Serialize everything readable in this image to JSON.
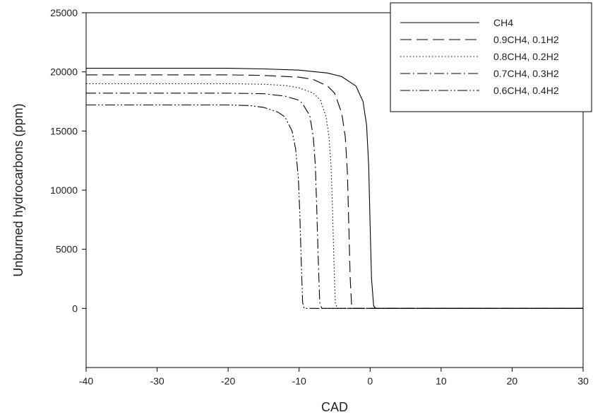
{
  "chart_data": {
    "type": "line",
    "title": "",
    "xlabel": "CAD",
    "ylabel": "Unburned hydrocarbons (ppm)",
    "xlim": [
      -40,
      30
    ],
    "ylim": [
      -5000,
      25000
    ],
    "xticks": [
      -40,
      -30,
      -20,
      -10,
      0,
      10,
      20,
      30
    ],
    "yticks": [
      0,
      5000,
      10000,
      15000,
      20000,
      25000
    ],
    "xtick_labels": [
      "-40",
      "-30",
      "-20",
      "-10",
      "0",
      "10",
      "20",
      "30"
    ],
    "ytick_labels": [
      "0",
      "5000",
      "10000",
      "15000",
      "20000",
      "25000"
    ],
    "grid": false,
    "legend_position": "top-right",
    "series": [
      {
        "name": "CH4",
        "dash": "solid",
        "x": [
          -40,
          -30,
          -20,
          -15,
          -10,
          -6,
          -4,
          -2,
          -1,
          -0.5,
          -0.2,
          0,
          0.2,
          0.5,
          0.8,
          1,
          10,
          20,
          30
        ],
        "y": [
          20300,
          20300,
          20300,
          20250,
          20150,
          19900,
          19600,
          18800,
          17500,
          15500,
          12000,
          7000,
          2500,
          200,
          0,
          0,
          0,
          0,
          0
        ]
      },
      {
        "name": "0.9CH4, 0.1H2",
        "dash": "long-dash",
        "x": [
          -40,
          -30,
          -20,
          -15,
          -10,
          -8,
          -6,
          -5,
          -4,
          -3.5,
          -3.2,
          -3,
          -2.8,
          -2.6,
          -2.4,
          0,
          10,
          20,
          30
        ],
        "y": [
          19750,
          19750,
          19750,
          19700,
          19550,
          19350,
          18800,
          18200,
          16500,
          14500,
          11500,
          7000,
          2500,
          200,
          0,
          0,
          0,
          0,
          0
        ]
      },
      {
        "name": "0.8CH4, 0.2H2",
        "dash": "dotted",
        "x": [
          -40,
          -30,
          -20,
          -15,
          -12,
          -10,
          -8,
          -7,
          -6.2,
          -5.8,
          -5.5,
          -5.3,
          -5.1,
          -4.9,
          -4.6,
          0,
          10,
          20,
          30
        ],
        "y": [
          19000,
          19000,
          19000,
          18950,
          18850,
          18650,
          18200,
          17600,
          16200,
          14500,
          12000,
          8500,
          4000,
          500,
          0,
          0,
          0,
          0,
          0
        ]
      },
      {
        "name": "0.7CH4, 0.3H2",
        "dash": "dash-dot",
        "x": [
          -40,
          -30,
          -20,
          -15,
          -12,
          -10,
          -9.5,
          -8.5,
          -8,
          -7.7,
          -7.5,
          -7.3,
          -7.1,
          -6.8,
          0,
          10,
          20,
          30
        ],
        "y": [
          18200,
          18200,
          18200,
          18150,
          17950,
          17600,
          17300,
          16300,
          14500,
          12000,
          8000,
          4000,
          500,
          0,
          0,
          0,
          0,
          0
        ]
      },
      {
        "name": "0.6CH4, 0.4H2",
        "dash": "dash-dot-dot",
        "x": [
          -40,
          -30,
          -20,
          -17,
          -15,
          -13,
          -12,
          -11,
          -10.5,
          -10.1,
          -9.9,
          -9.7,
          -9.5,
          -9.3,
          -9.1,
          0,
          10,
          20,
          30
        ],
        "y": [
          17200,
          17200,
          17200,
          17150,
          17000,
          16600,
          16200,
          15000,
          13500,
          11000,
          8000,
          4000,
          500,
          0,
          0,
          0,
          0,
          0,
          0
        ]
      }
    ]
  }
}
